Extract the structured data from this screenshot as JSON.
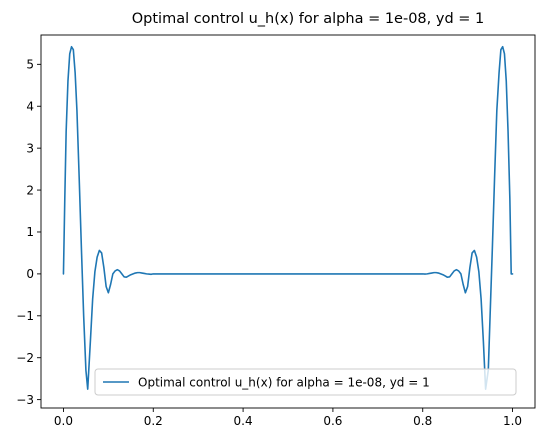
{
  "chart_data": {
    "type": "line",
    "title": "Optimal control u_h(x) for alpha = 1e-08, yd = 1",
    "xlabel": "",
    "ylabel": "",
    "xlim": [
      -0.05,
      1.05
    ],
    "ylim": [
      -3.2,
      5.7
    ],
    "xticks": [
      0.0,
      0.2,
      0.4,
      0.6,
      0.8,
      1.0
    ],
    "xtick_labels": [
      "0.0",
      "0.2",
      "0.4",
      "0.6",
      "0.8",
      "1.0"
    ],
    "yticks": [
      -3,
      -2,
      -1,
      0,
      1,
      2,
      3,
      4,
      5
    ],
    "ytick_labels": [
      "−3",
      "−2",
      "−1",
      "0",
      "1",
      "2",
      "3",
      "4",
      "5"
    ],
    "grid": false,
    "legend_position": "lower-center",
    "series": [
      {
        "name": "Optimal control u_h(x) for alpha = 1e-08, yd = 1",
        "color": "#1f77b4",
        "x": [
          0.0,
          0.003,
          0.006,
          0.01,
          0.014,
          0.018,
          0.022,
          0.026,
          0.03,
          0.035,
          0.04,
          0.045,
          0.05,
          0.054,
          0.06,
          0.065,
          0.07,
          0.075,
          0.08,
          0.085,
          0.09,
          0.095,
          0.1,
          0.105,
          0.11,
          0.115,
          0.12,
          0.125,
          0.13,
          0.135,
          0.14,
          0.145,
          0.15,
          0.155,
          0.16,
          0.165,
          0.17,
          0.175,
          0.18,
          0.185,
          0.19,
          0.195,
          0.2,
          0.21,
          0.22,
          0.24,
          0.26,
          0.3,
          0.4,
          0.5,
          0.6,
          0.7,
          0.74,
          0.76,
          0.78,
          0.79,
          0.8,
          0.805,
          0.81,
          0.815,
          0.82,
          0.825,
          0.83,
          0.835,
          0.84,
          0.845,
          0.85,
          0.855,
          0.86,
          0.865,
          0.87,
          0.875,
          0.88,
          0.885,
          0.89,
          0.895,
          0.9,
          0.905,
          0.91,
          0.915,
          0.92,
          0.925,
          0.93,
          0.935,
          0.94,
          0.946,
          0.95,
          0.955,
          0.96,
          0.965,
          0.97,
          0.974,
          0.978,
          0.982,
          0.986,
          0.99,
          0.994,
          0.997,
          1.0
        ],
        "y": [
          0.0,
          1.8,
          3.4,
          4.6,
          5.25,
          5.42,
          5.35,
          4.8,
          3.9,
          2.3,
          0.6,
          -1.0,
          -2.3,
          -2.75,
          -1.6,
          -0.6,
          0.05,
          0.4,
          0.56,
          0.5,
          0.15,
          -0.3,
          -0.45,
          -0.25,
          0.0,
          0.07,
          0.1,
          0.07,
          0.0,
          -0.07,
          -0.08,
          -0.05,
          -0.02,
          0.0,
          0.02,
          0.03,
          0.03,
          0.02,
          0.01,
          0.0,
          -0.005,
          -0.01,
          0.0,
          0.0,
          0.0,
          0.0,
          0.0,
          0.0,
          0.0,
          0.0,
          0.0,
          0.0,
          0.0,
          0.0,
          0.0,
          0.0,
          0.0,
          -0.005,
          0.0,
          0.01,
          0.02,
          0.03,
          0.03,
          0.02,
          0.0,
          -0.02,
          -0.05,
          -0.08,
          -0.07,
          0.0,
          0.07,
          0.1,
          0.07,
          0.0,
          -0.25,
          -0.45,
          -0.3,
          0.15,
          0.5,
          0.56,
          0.4,
          0.05,
          -0.6,
          -1.6,
          -2.75,
          -2.3,
          -1.0,
          0.6,
          2.3,
          3.9,
          4.8,
          5.35,
          5.42,
          5.25,
          4.6,
          3.4,
          1.8,
          0.0,
          0.0
        ]
      }
    ]
  }
}
